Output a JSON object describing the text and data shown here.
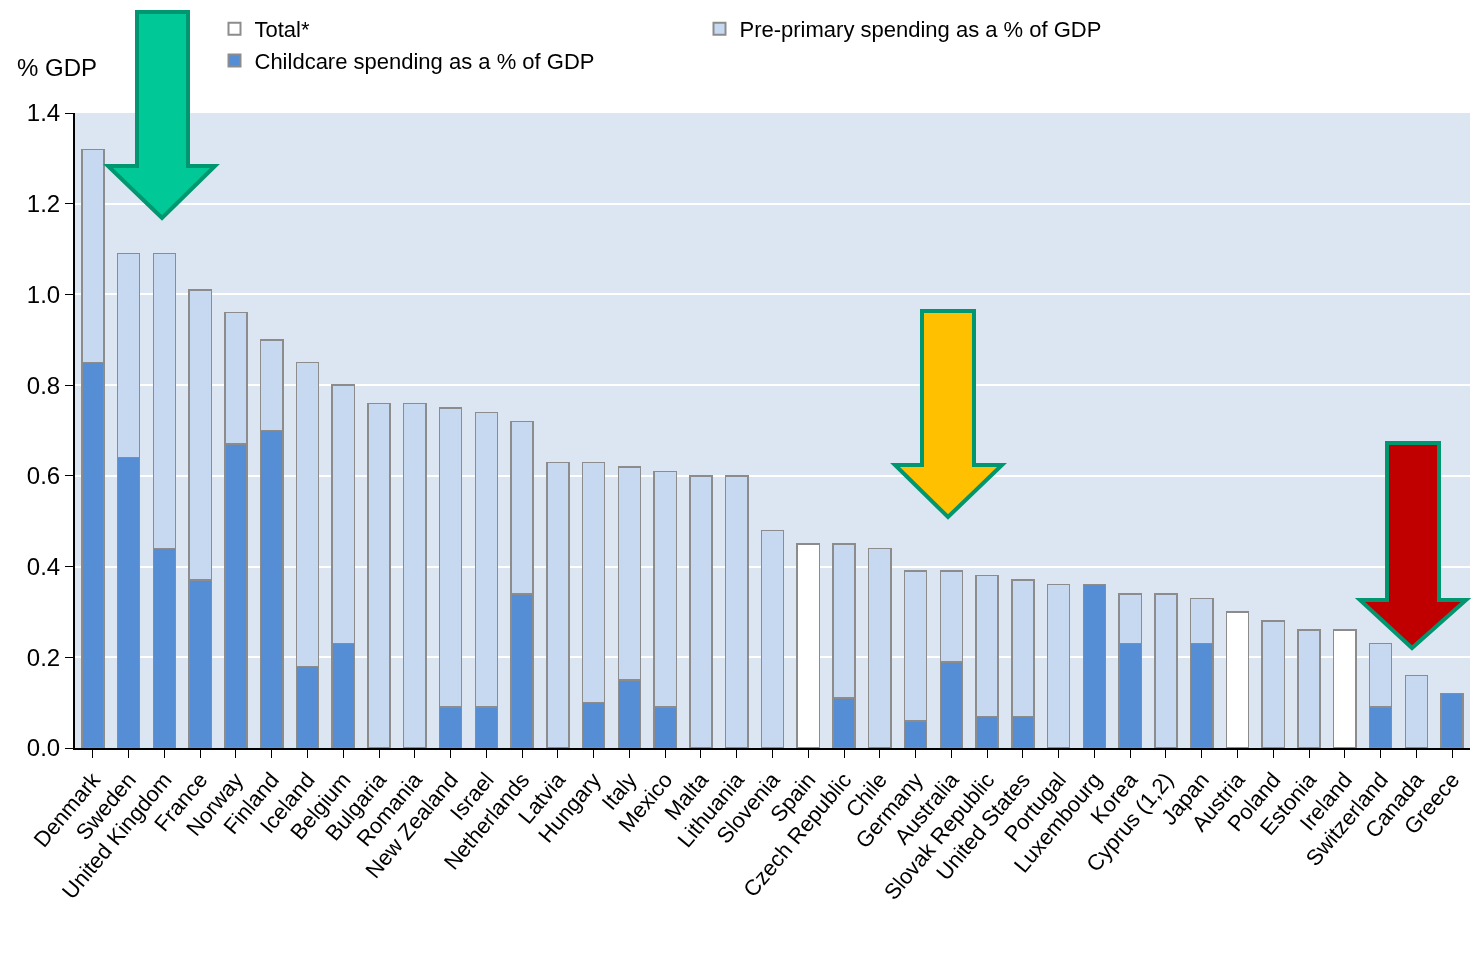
{
  "chart_data": {
    "type": "bar",
    "stacked": true,
    "ylabel": "% GDP",
    "categories": [
      "Denmark",
      "Sweden",
      "United Kingdom",
      "France",
      "Norway",
      "Finland",
      "Iceland",
      "Belgium",
      "Bulgaria",
      "Romania",
      "New Zealand",
      "Israel",
      "Netherlands",
      "Latvia",
      "Hungary",
      "Italy",
      "Mexico",
      "Malta",
      "Lithuania",
      "Slovenia",
      "Spain",
      "Czech Republic",
      "Chile",
      "Germany",
      "Australia",
      "Slovak Republic",
      "United States",
      "Portugal",
      "Luxembourg",
      "Korea",
      "Cyprus (1,2)",
      "Japan",
      "Austria",
      "Poland",
      "Estonia",
      "Ireland",
      "Switzerland",
      "Canada",
      "Greece"
    ],
    "series": [
      {
        "name": "Childcare spending as a % of GDP",
        "color": "#558ed5",
        "values": [
          0.85,
          0.64,
          0.44,
          0.37,
          0.67,
          0.7,
          0.18,
          0.23,
          null,
          null,
          0.09,
          0.09,
          0.34,
          null,
          0.1,
          0.15,
          0.09,
          null,
          null,
          null,
          null,
          0.11,
          null,
          0.06,
          0.19,
          0.07,
          0.07,
          null,
          0.36,
          0.23,
          null,
          0.23,
          null,
          null,
          null,
          null,
          0.09,
          null,
          0.12
        ]
      },
      {
        "name": "Pre-primary spending as a % of GDP",
        "color": "#c6d9f1",
        "values": [
          0.47,
          0.45,
          0.65,
          0.64,
          0.29,
          0.2,
          0.67,
          0.57,
          0.76,
          0.76,
          0.66,
          0.65,
          0.38,
          0.63,
          0.53,
          0.47,
          0.52,
          0.6,
          0.6,
          0.48,
          null,
          0.34,
          0.44,
          0.33,
          0.2,
          0.31,
          0.3,
          0.36,
          null,
          0.11,
          0.34,
          0.1,
          null,
          0.28,
          0.26,
          null,
          0.14,
          0.16,
          null
        ]
      },
      {
        "name": "Total*",
        "color": "#ffffff",
        "values": [
          null,
          null,
          null,
          null,
          null,
          null,
          null,
          null,
          null,
          null,
          null,
          null,
          null,
          null,
          null,
          null,
          null,
          null,
          null,
          null,
          0.45,
          null,
          null,
          null,
          null,
          null,
          null,
          null,
          null,
          null,
          null,
          null,
          0.3,
          null,
          null,
          0.26,
          null,
          null,
          null
        ]
      }
    ],
    "ylim": [
      0,
      1.4
    ],
    "yticks": [
      {
        "value": 0,
        "label": "0.0"
      },
      {
        "value": 0.2,
        "label": "0.2"
      },
      {
        "value": 0.4,
        "label": "0.4"
      },
      {
        "value": 0.6,
        "label": "0.6"
      },
      {
        "value": 0.8,
        "label": "0.8"
      },
      {
        "value": 1.0,
        "label": "1.0"
      },
      {
        "value": 1.2,
        "label": "1.2"
      },
      {
        "value": 1.4,
        "label": "1.4"
      }
    ],
    "grid": "y",
    "legend": "top"
  }
}
